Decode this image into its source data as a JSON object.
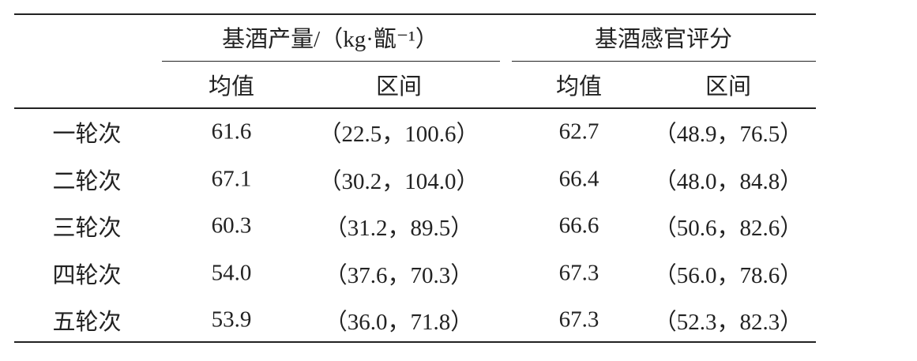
{
  "header": {
    "groups": [
      "基酒产量/（kg·甑⁻¹）",
      "基酒感官评分"
    ],
    "sub_headers": [
      "均值",
      "区间",
      "均值",
      "区间"
    ]
  },
  "table": {
    "rows": [
      [
        "一轮次",
        "61.6",
        "（22.5，100.6）",
        "62.7",
        "（48.9，76.5）"
      ],
      [
        "二轮次",
        "67.1",
        "（30.2，104.0）",
        "66.4",
        "（48.0，84.8）"
      ],
      [
        "三轮次",
        "60.3",
        "（31.2，89.5）",
        "66.6",
        "（50.6，82.6）"
      ],
      [
        "四轮次",
        "54.0",
        "（37.6，70.3）",
        "67.3",
        "（56.0，78.6）"
      ],
      [
        "五轮次",
        "53.9",
        "（36.0，71.8）",
        "67.3",
        "（52.3，82.3）"
      ]
    ]
  }
}
